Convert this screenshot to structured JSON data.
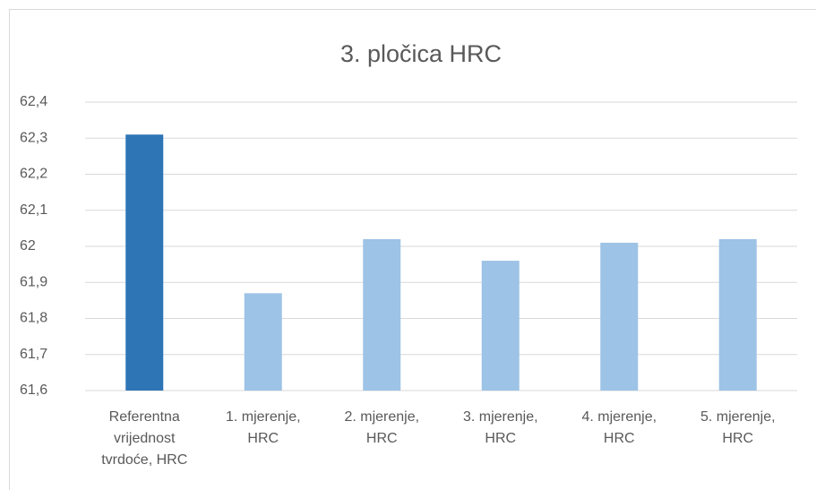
{
  "chart_data": {
    "type": "bar",
    "title": "3. pločica HRC",
    "categories": [
      "Referentna vrijednost tvrdoće, HRC",
      "1. mjerenje, HRC",
      "2. mjerenje, HRC",
      "3. mjerenje, HRC",
      "4. mjerenje, HRC",
      "5. mjerenje, HRC"
    ],
    "values": [
      62.31,
      61.87,
      62.02,
      61.96,
      62.01,
      62.02
    ],
    "colors": [
      "#2e75b6",
      "#9dc3e6",
      "#9dc3e6",
      "#9dc3e6",
      "#9dc3e6",
      "#9dc3e6"
    ],
    "ylim": [
      61.6,
      62.4
    ],
    "yticks": [
      {
        "value": 61.6,
        "label": "61,6"
      },
      {
        "value": 61.7,
        "label": "61,7"
      },
      {
        "value": 61.8,
        "label": "61,8"
      },
      {
        "value": 61.9,
        "label": "61,9"
      },
      62,
      {
        "value": 62.1,
        "label": "62,1"
      },
      {
        "value": 62.2,
        "label": "62,2"
      },
      {
        "value": 62.3,
        "label": "62,3"
      },
      {
        "value": 62.4,
        "label": "62,4"
      }
    ],
    "grid": true
  }
}
